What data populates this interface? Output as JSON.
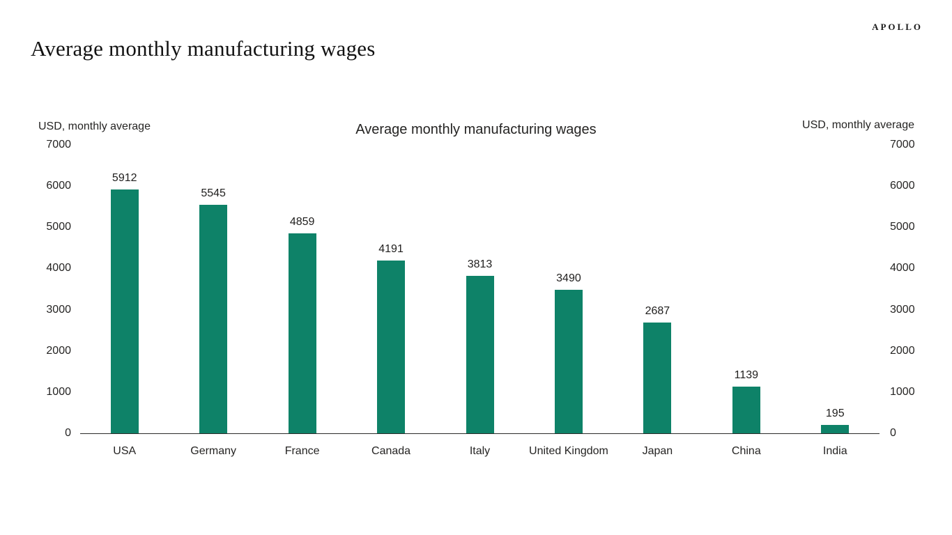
{
  "page": {
    "brand": "APOLLO",
    "title": "Average monthly manufacturing wages"
  },
  "chart_data": {
    "type": "bar",
    "title": "Average monthly manufacturing wages",
    "left_axis_label": "USD, monthly average",
    "right_axis_label": "USD, monthly average",
    "categories": [
      "USA",
      "Germany",
      "France",
      "Canada",
      "Italy",
      "United Kingdom",
      "Japan",
      "China",
      "India"
    ],
    "values": [
      5912,
      5545,
      4859,
      4191,
      3813,
      3490,
      2687,
      1139,
      195
    ],
    "ylim": [
      0,
      7000
    ],
    "yticks": [
      0,
      1000,
      2000,
      3000,
      4000,
      5000,
      6000,
      7000
    ],
    "ytick_interval": 1000,
    "bar_color": "#0e8268",
    "grid": false,
    "legend": "none",
    "data_labels": true
  }
}
